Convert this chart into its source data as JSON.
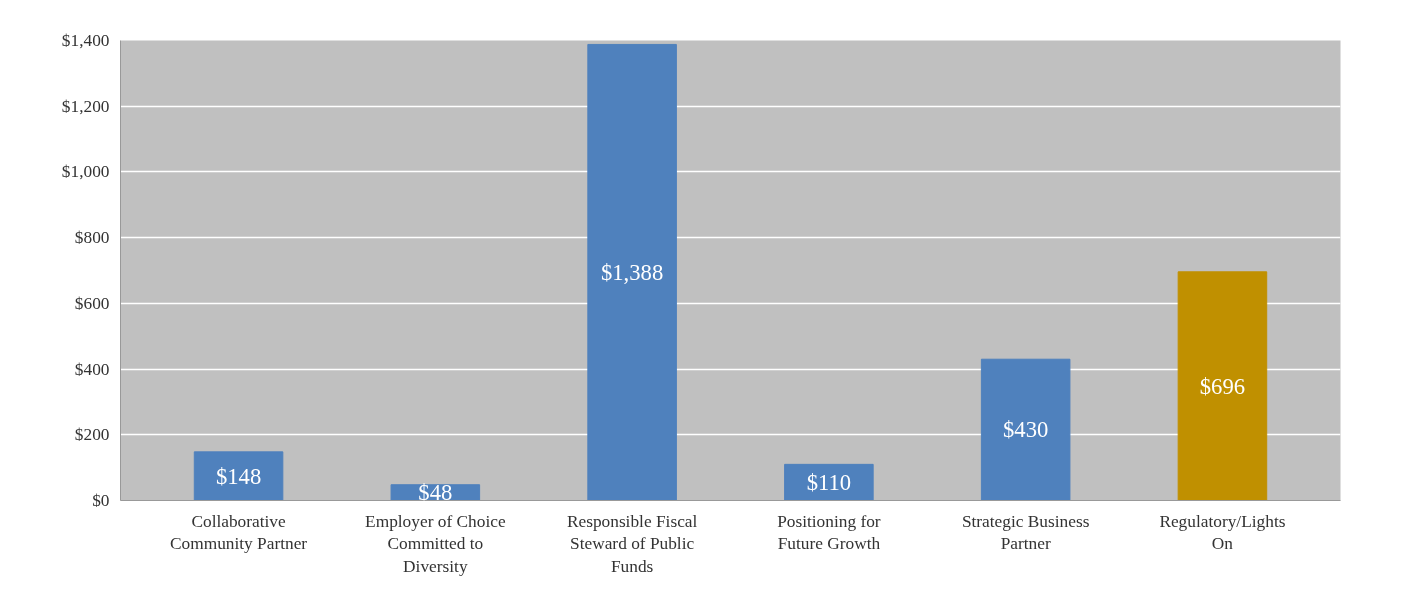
{
  "chart_data": {
    "type": "bar",
    "categories": [
      "Collaborative Community Partner",
      "Employer of Choice Committed to Diversity",
      "Responsible Fiscal Steward of Public Funds",
      "Positioning for Future Growth",
      "Strategic Business Partner",
      "Regulatory/Lights On"
    ],
    "values": [
      148,
      48,
      1388,
      110,
      430,
      696
    ],
    "colors": [
      "#4f81bd",
      "#4f81bd",
      "#4f81bd",
      "#4f81bd",
      "#4f81bd",
      "#c09000"
    ],
    "value_labels": [
      "$148",
      "$48",
      "$1,388",
      "$110",
      "$430",
      "$696"
    ],
    "ylim": [
      0,
      1400
    ],
    "yticks": [
      {
        "value": 0,
        "label": "$0"
      },
      {
        "value": 200,
        "label": "$200"
      },
      {
        "value": 400,
        "label": "$400"
      },
      {
        "value": 600,
        "label": "$600"
      },
      {
        "value": 800,
        "label": "$800"
      },
      {
        "value": 1000,
        "label": "$1,000"
      },
      {
        "value": 1200,
        "label": "$1,200"
      },
      {
        "value": 1400,
        "label": "$1,400"
      }
    ],
    "grid": "y"
  }
}
